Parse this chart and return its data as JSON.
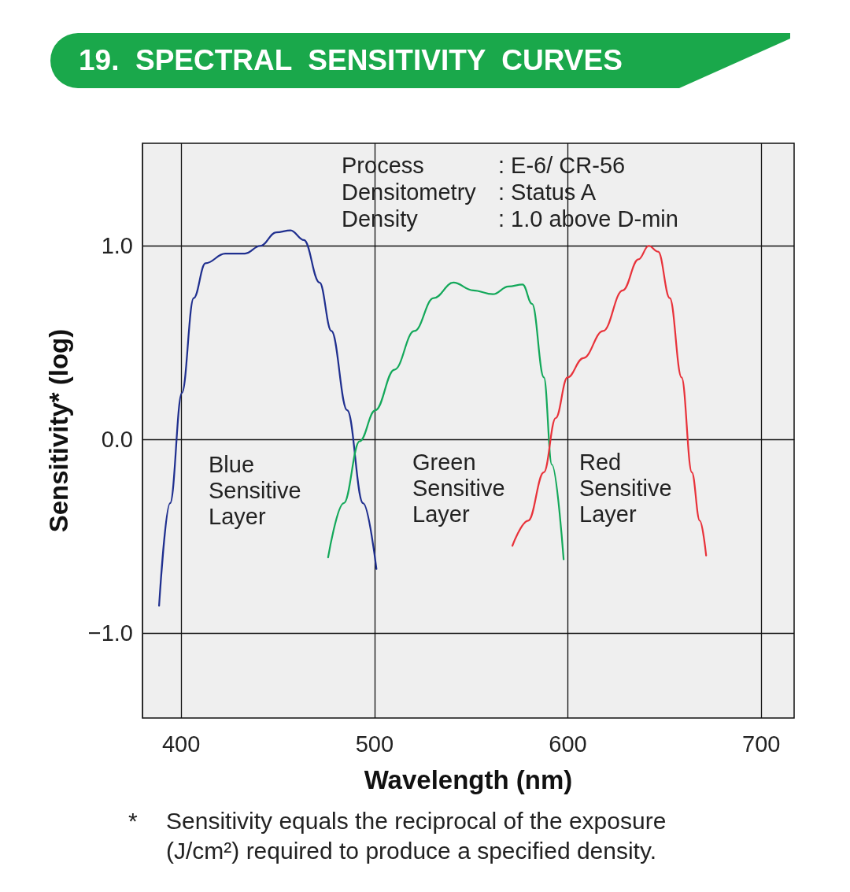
{
  "chart_data": {
    "type": "line",
    "title": "19.  SPECTRAL  SENSITIVITY  CURVES",
    "xlabel": "Wavelength (nm)",
    "ylabel": "Sensitivity* (log)",
    "xlim": [
      380,
      717
    ],
    "ylim": [
      -1.44,
      1.53
    ],
    "xticks": [
      400,
      500,
      600,
      700
    ],
    "yticks": [
      {
        "value": -1,
        "label": "−1.0"
      },
      {
        "value": 0,
        "label": "0.0"
      },
      {
        "value": 1,
        "label": "1.0"
      }
    ],
    "grid": true,
    "marker": "none",
    "line_style": "solid",
    "series": [
      {
        "color": "#1f2f8f",
        "x": [
          388.6,
          394.3,
          400.4,
          406.5,
          412.6,
          422.8,
          433,
          441,
          449.2,
          456.6,
          463.5,
          471.6,
          477.7,
          485.9,
          494.1,
          501
        ],
        "values": [
          -0.86,
          -0.33,
          0.24,
          0.73,
          0.91,
          0.96,
          0.96,
          1.0,
          1.07,
          1.08,
          1.03,
          0.81,
          0.56,
          0.15,
          -0.33,
          -0.67
        ]
      },
      {
        "color": "#13a85a",
        "x": [
          476,
          484.1,
          492.3,
          500.4,
          510.3,
          520.6,
          530.6,
          540.8,
          551,
          561.2,
          569.3,
          576.6,
          581.5,
          587.6,
          591.7,
          597.8
        ],
        "values": [
          -0.61,
          -0.33,
          -0.01,
          0.15,
          0.36,
          0.56,
          0.73,
          0.81,
          0.77,
          0.75,
          0.79,
          0.8,
          0.7,
          0.32,
          -0.13,
          -0.62
        ]
      },
      {
        "color": "#e8323a",
        "x": [
          571.3,
          579.5,
          587.6,
          593.7,
          599.8,
          608,
          618.2,
          628.4,
          636.5,
          641.8,
          646.7,
          652.7,
          658.8,
          664.1,
          668.2,
          671.5
        ],
        "values": [
          -0.55,
          -0.42,
          -0.17,
          0.11,
          0.32,
          0.42,
          0.56,
          0.77,
          0.93,
          1.0,
          0.97,
          0.73,
          0.32,
          -0.17,
          -0.42,
          -0.6
        ]
      }
    ],
    "annotations": [
      "Blue\nSensitive\nLayer",
      "Green\nSensitive\nLayer",
      "Red\nSensitive\nLayer",
      "Process : E-6/ CR-56\nDensitometry : Status A\nDensity : 1.0 above D-min",
      "*\tSensitivity equals the reciprocal of the exposure\n(J/cm²) required to produce a specified density."
    ]
  }
}
